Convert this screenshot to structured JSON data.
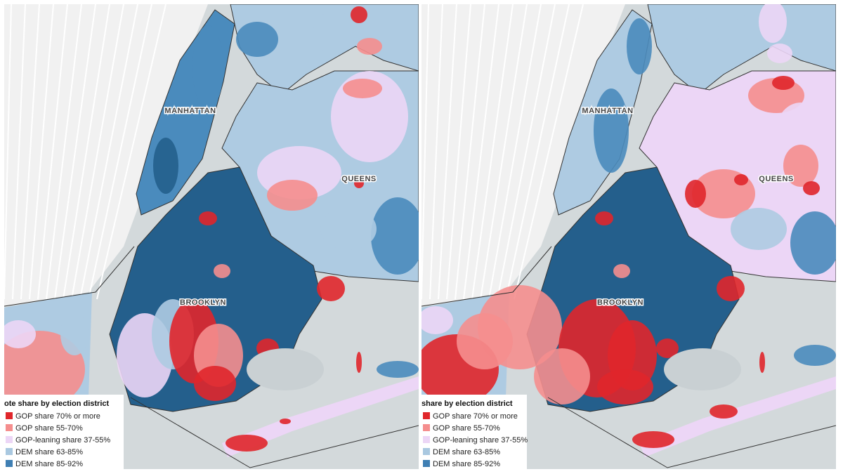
{
  "panels": [
    {
      "labels": [
        "MANHATTAN",
        "QUEENS",
        "BROOKLYN"
      ],
      "legend": {
        "title": "ote share by election district",
        "items": [
          {
            "label": "GOP share 70% or more",
            "color": "#e0262b"
          },
          {
            "label": "GOP share 55-70%",
            "color": "#f58e8e"
          },
          {
            "label": "GOP-leaning share 37-55%",
            "color": "#ecd6f6"
          },
          {
            "label": "DEM share 63-85%",
            "color": "#a9c8e0"
          },
          {
            "label": "DEM share 85-92%",
            "color": "#3f7fb3"
          }
        ]
      }
    },
    {
      "labels": [
        "MANHATTAN",
        "QUEENS",
        "BROOKLYN"
      ],
      "legend": {
        "title": "share by election district",
        "items": [
          {
            "label": "GOP share 70% or more",
            "color": "#e0262b"
          },
          {
            "label": "GOP share 55-70%",
            "color": "#f58e8e"
          },
          {
            "label": "GOP-leaning share 37-55%",
            "color": "#ecd6f6"
          },
          {
            "label": "DEM share 63-85%",
            "color": "#a9c8e0"
          },
          {
            "label": "DEM share 85-92%",
            "color": "#3f7fb3"
          }
        ]
      }
    }
  ]
}
